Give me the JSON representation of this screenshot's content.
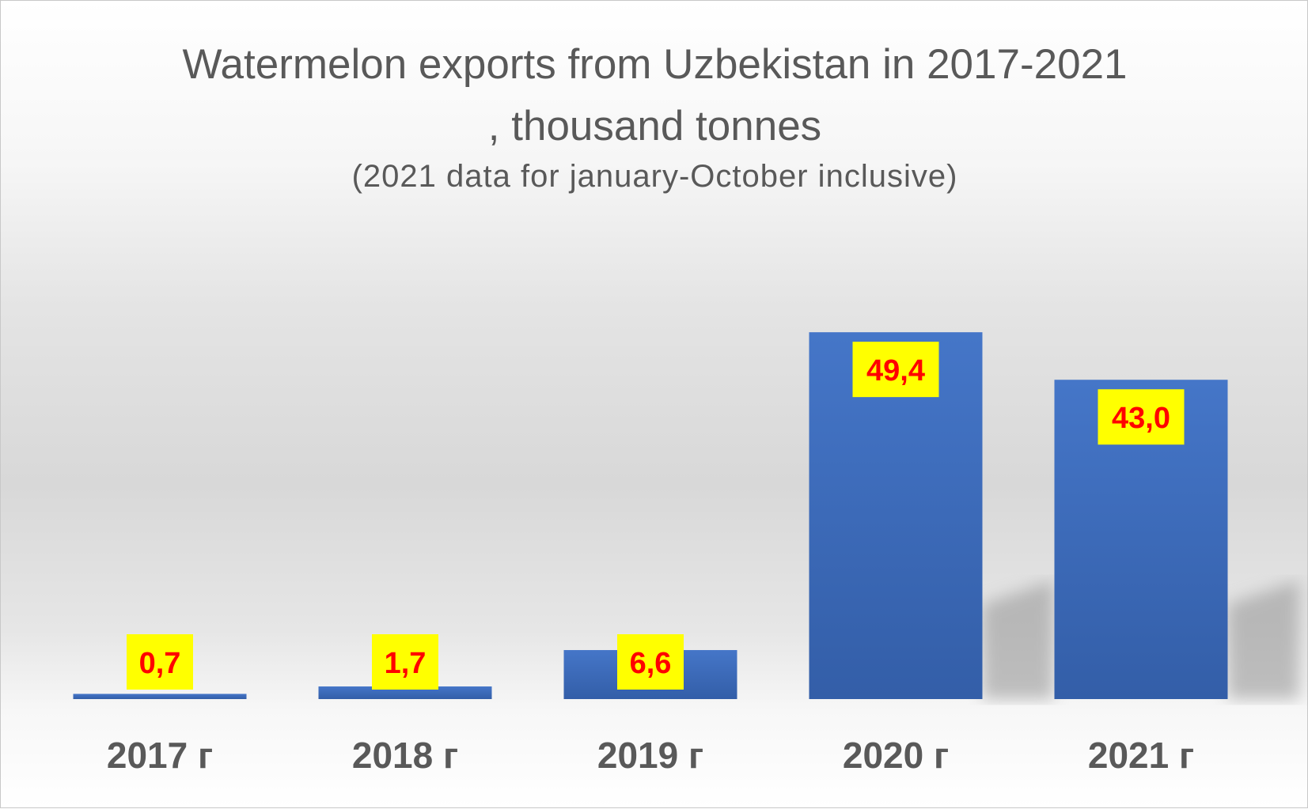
{
  "chart_data": {
    "type": "bar",
    "title": "Watermelon exports from Uzbekistan in 2017-2021 , thousand tonnes",
    "subtitle": "(2021 data for january-October inclusive)",
    "categories": [
      "2017 г",
      "2018 г",
      "2019 г",
      "2020 г",
      "2021 г"
    ],
    "values": [
      0.7,
      1.7,
      6.6,
      49.4,
      43.0
    ],
    "data_labels": [
      "0,7",
      "1,7",
      "6,6",
      "49,4",
      "43,0"
    ],
    "xlabel": "",
    "ylabel": "",
    "grid": false,
    "colors": {
      "bar": "#4472c4",
      "label_bg": "#ffff00",
      "label_text": "#ff0000",
      "axis_text": "#595959"
    }
  }
}
